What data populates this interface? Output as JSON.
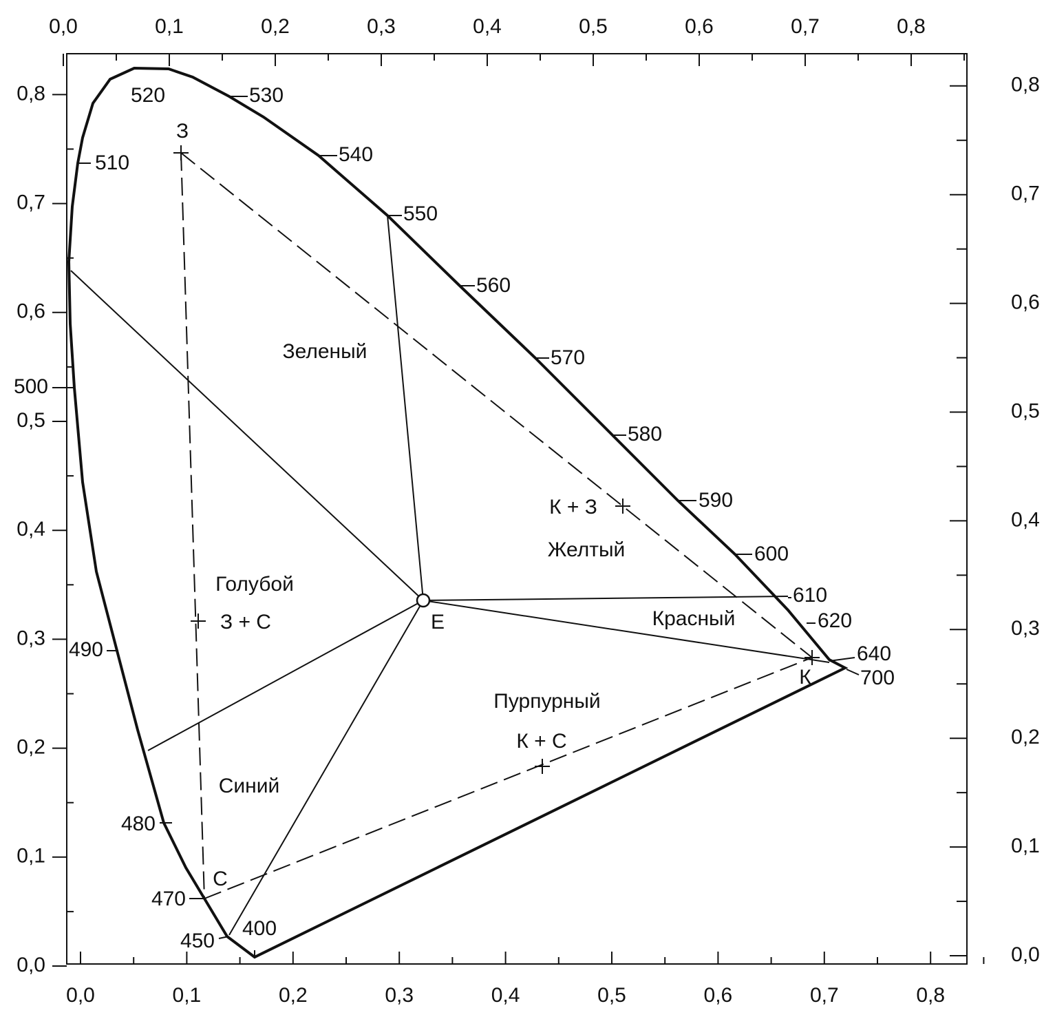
{
  "axes": {
    "bottom": [
      "0,0",
      "0,1",
      "0,2",
      "0,3",
      "0,4",
      "0,5",
      "0,6",
      "0,7",
      "0,8"
    ],
    "top": [
      "0,0",
      "0,1",
      "0,2",
      "0,3",
      "0,4",
      "0,5",
      "0,6",
      "0,7",
      "0,8"
    ],
    "left": [
      "0,0",
      "0,1",
      "0,2",
      "0,3",
      "0,4",
      "0,5",
      "0,6",
      "0,7",
      "0,8"
    ],
    "right": [
      "0,0",
      "0,1",
      "0,2",
      "0,3",
      "0,4",
      "0,5",
      "0,6",
      "0,7",
      "0,8"
    ]
  },
  "wavelengths": [
    "400",
    "450",
    "470",
    "480",
    "490",
    "500",
    "510",
    "520",
    "530",
    "540",
    "550",
    "560",
    "570",
    "580",
    "590",
    "600",
    "610",
    "620",
    "640",
    "700"
  ],
  "regions": [
    "Зеленый",
    "Голубой",
    "Синий",
    "Желтый",
    "Красный",
    "Пурпурный"
  ],
  "points": [
    "З",
    "К",
    "С",
    "Е",
    "К + З",
    "З + С",
    "К + С"
  ]
}
